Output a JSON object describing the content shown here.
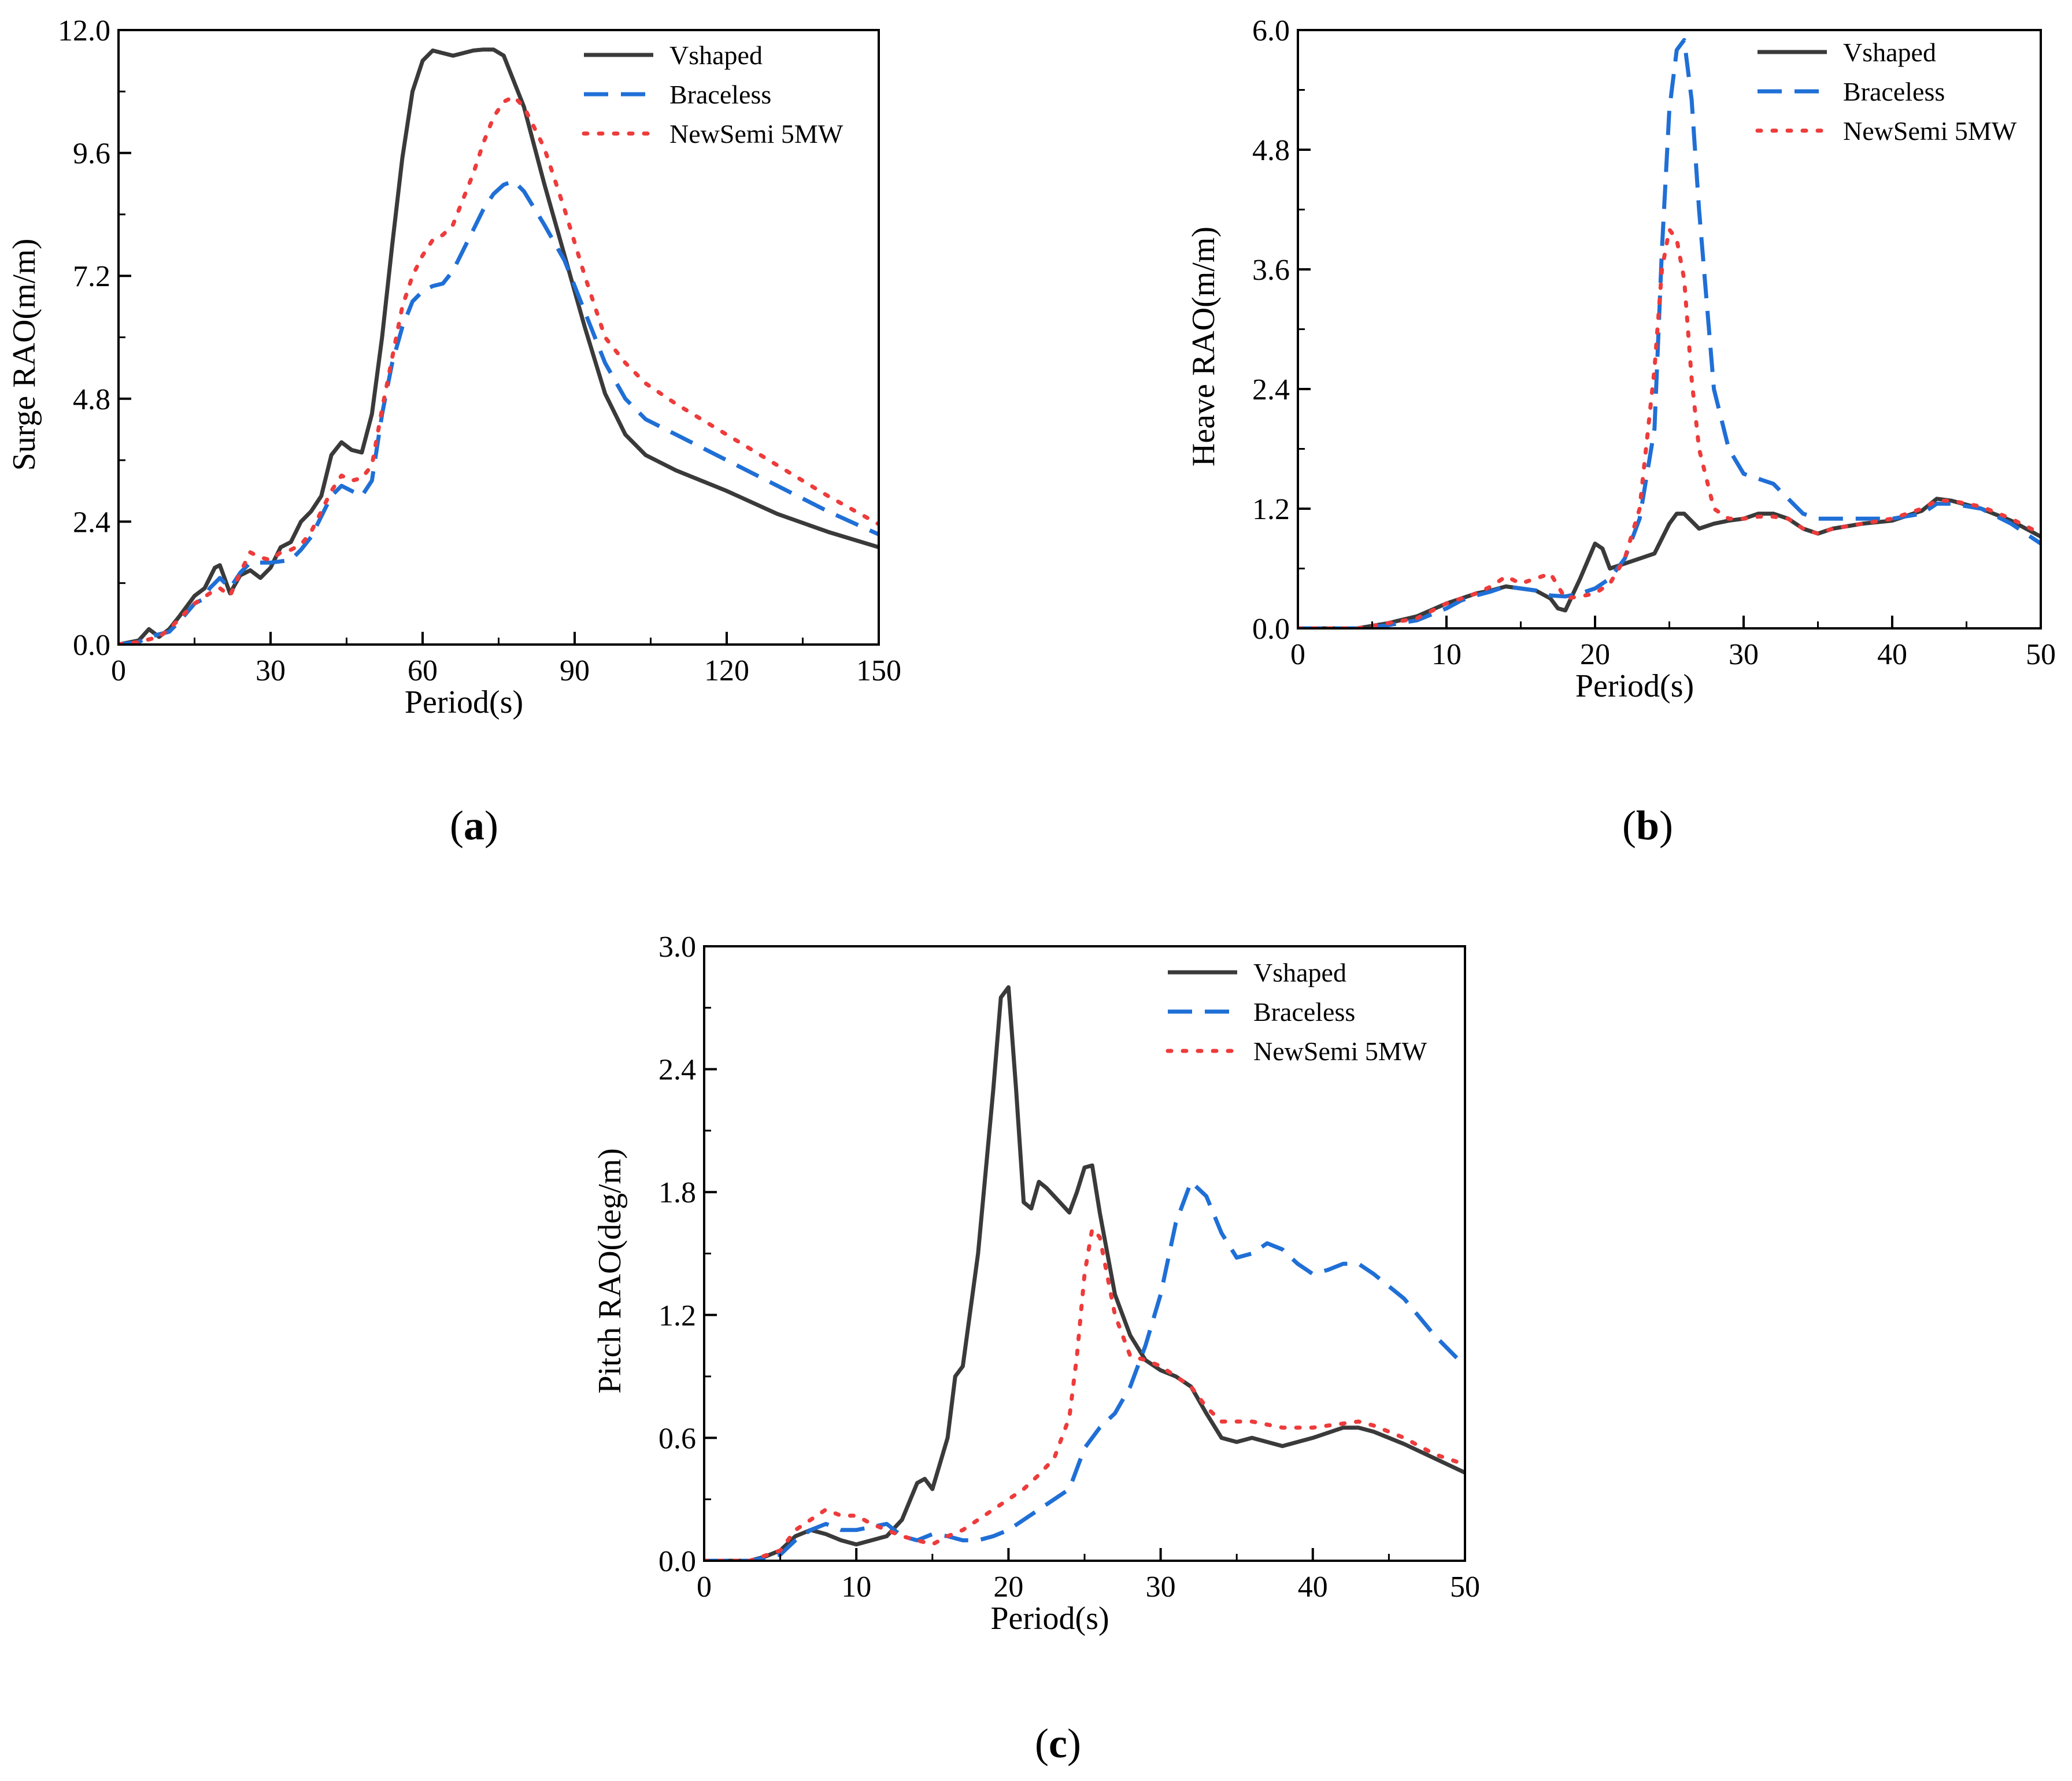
{
  "figure": {
    "panel_labels": [
      {
        "open": "(",
        "letter": "a",
        "close": ")"
      },
      {
        "open": "(",
        "letter": "b",
        "close": ")"
      },
      {
        "open": "(",
        "letter": "c",
        "close": ")"
      }
    ]
  },
  "colors": {
    "vshaped": "#3a3a3a",
    "braceless": "#1f6fd6",
    "newsemi": "#ee3b3b",
    "axis": "#000000"
  },
  "chart_data": [
    {
      "type": "line",
      "panel": "a",
      "title": "",
      "xlabel": "Period(s)",
      "ylabel": "Surge RAO(m/m)",
      "xlim": [
        0,
        150
      ],
      "ylim": [
        0,
        12
      ],
      "xticks": [
        0,
        30,
        60,
        90,
        120,
        150
      ],
      "yticks": [
        0.0,
        2.4,
        4.8,
        7.2,
        9.6,
        12.0
      ],
      "ytick_labels": [
        "0.0",
        "2.4",
        "4.8",
        "7.2",
        "9.6",
        "12.0"
      ],
      "legend": [
        "Vshaped",
        "Braceless",
        "NewSemi 5MW"
      ],
      "series": [
        {
          "name": "Vshaped",
          "style": "solid",
          "x": [
            0,
            4,
            6,
            8,
            10,
            12,
            15,
            17,
            18,
            19,
            20,
            22,
            24,
            26,
            28,
            30,
            32,
            34,
            36,
            38,
            40,
            42,
            44,
            46,
            48,
            50,
            52,
            54,
            56,
            58,
            60,
            62,
            64,
            66,
            68,
            70,
            72,
            74,
            76,
            78,
            80,
            84,
            88,
            92,
            96,
            100,
            104,
            110,
            120,
            130,
            140,
            150
          ],
          "y": [
            0,
            0.08,
            0.3,
            0.15,
            0.3,
            0.55,
            0.95,
            1.1,
            1.3,
            1.5,
            1.55,
            1.0,
            1.35,
            1.45,
            1.3,
            1.5,
            1.9,
            2.0,
            2.4,
            2.6,
            2.9,
            3.7,
            3.95,
            3.8,
            3.75,
            4.5,
            6.0,
            7.8,
            9.5,
            10.8,
            11.4,
            11.6,
            11.55,
            11.5,
            11.55,
            11.6,
            11.62,
            11.62,
            11.5,
            11.0,
            10.5,
            9.0,
            7.6,
            6.2,
            4.9,
            4.1,
            3.7,
            3.4,
            3.0,
            2.55,
            2.2,
            1.9
          ]
        },
        {
          "name": "Braceless",
          "style": "dashed",
          "x": [
            0,
            4,
            6,
            8,
            10,
            12,
            15,
            17,
            18,
            20,
            22,
            24,
            26,
            28,
            30,
            34,
            36,
            38,
            40,
            42,
            44,
            46,
            48,
            50,
            52,
            54,
            56,
            58,
            60,
            62,
            64,
            66,
            68,
            70,
            72,
            74,
            76,
            78,
            80,
            84,
            88,
            92,
            96,
            100,
            104,
            110,
            120,
            130,
            140,
            150
          ],
          "y": [
            0,
            0.05,
            0.15,
            0.2,
            0.25,
            0.45,
            0.8,
            0.9,
            1.1,
            1.3,
            1.1,
            1.4,
            1.6,
            1.6,
            1.6,
            1.65,
            1.85,
            2.1,
            2.5,
            2.9,
            3.1,
            3.0,
            2.9,
            3.2,
            4.5,
            5.5,
            6.2,
            6.7,
            6.9,
            7.0,
            7.05,
            7.3,
            7.7,
            8.1,
            8.5,
            8.8,
            8.98,
            9.05,
            8.85,
            8.2,
            7.5,
            6.5,
            5.5,
            4.8,
            4.4,
            4.1,
            3.6,
            3.1,
            2.6,
            2.15
          ]
        },
        {
          "name": "NewSemi 5MW",
          "style": "dotted",
          "x": [
            0,
            4,
            6,
            8,
            10,
            12,
            15,
            18,
            20,
            22,
            24,
            26,
            28,
            30,
            32,
            34,
            36,
            38,
            40,
            42,
            44,
            46,
            48,
            50,
            52,
            54,
            56,
            58,
            60,
            62,
            64,
            66,
            68,
            70,
            72,
            74,
            76,
            78,
            80,
            84,
            88,
            92,
            96,
            100,
            104,
            110,
            120,
            130,
            140,
            150
          ],
          "y": [
            0,
            0.05,
            0.1,
            0.15,
            0.3,
            0.5,
            0.8,
            1.0,
            1.1,
            0.95,
            1.4,
            1.8,
            1.7,
            1.65,
            1.8,
            1.85,
            1.95,
            2.2,
            2.6,
            3.0,
            3.3,
            3.2,
            3.25,
            3.5,
            4.6,
            5.6,
            6.6,
            7.2,
            7.6,
            7.9,
            8.0,
            8.2,
            8.7,
            9.2,
            9.8,
            10.3,
            10.6,
            10.7,
            10.5,
            9.7,
            8.5,
            7.2,
            6.0,
            5.5,
            5.1,
            4.7,
            4.1,
            3.5,
            2.9,
            2.35
          ]
        }
      ]
    },
    {
      "type": "line",
      "panel": "b",
      "title": "",
      "xlabel": "Period(s)",
      "ylabel": "Heave RAO(m/m)",
      "xlim": [
        0,
        50
      ],
      "ylim": [
        0,
        6
      ],
      "xticks": [
        0,
        10,
        20,
        30,
        40,
        50
      ],
      "yticks": [
        0.0,
        1.2,
        2.4,
        3.6,
        4.8,
        6.0
      ],
      "ytick_labels": [
        "0.0",
        "1.2",
        "2.4",
        "3.6",
        "4.8",
        "6.0"
      ],
      "legend": [
        "Vshaped",
        "Braceless",
        "NewSemi 5MW"
      ],
      "series": [
        {
          "name": "Vshaped",
          "style": "solid",
          "x": [
            0,
            4,
            6,
            8,
            10,
            11,
            12,
            13,
            14,
            15,
            16,
            17,
            17.5,
            18,
            19,
            20,
            20.5,
            21,
            22,
            23,
            24,
            25,
            25.5,
            26,
            27,
            28,
            29,
            30,
            31,
            32,
            33,
            34,
            35,
            36,
            38,
            40,
            42,
            43,
            44,
            46,
            48,
            50
          ],
          "y": [
            0,
            0,
            0.05,
            0.12,
            0.25,
            0.3,
            0.35,
            0.38,
            0.42,
            0.4,
            0.38,
            0.3,
            0.2,
            0.18,
            0.5,
            0.85,
            0.8,
            0.6,
            0.65,
            0.7,
            0.75,
            1.05,
            1.15,
            1.15,
            1.0,
            1.05,
            1.08,
            1.1,
            1.15,
            1.15,
            1.1,
            1.0,
            0.95,
            1.0,
            1.05,
            1.08,
            1.18,
            1.3,
            1.28,
            1.2,
            1.08,
            0.92
          ]
        },
        {
          "name": "Braceless",
          "style": "dashed",
          "x": [
            0,
            4,
            6,
            8,
            10,
            11,
            12,
            13,
            14,
            15,
            16,
            17,
            18,
            19,
            20,
            21,
            22,
            23,
            24,
            24.5,
            25,
            25.5,
            26,
            26.5,
            27,
            28,
            29,
            30,
            31,
            32,
            33,
            34,
            35,
            36,
            38,
            40,
            42,
            43,
            44,
            46,
            48,
            50
          ],
          "y": [
            0,
            0,
            0.03,
            0.08,
            0.2,
            0.28,
            0.33,
            0.37,
            0.42,
            0.4,
            0.38,
            0.33,
            0.32,
            0.35,
            0.4,
            0.5,
            0.7,
            1.1,
            2.0,
            3.8,
            5.2,
            5.8,
            5.9,
            5.3,
            4.2,
            2.4,
            1.8,
            1.55,
            1.5,
            1.45,
            1.3,
            1.15,
            1.1,
            1.1,
            1.1,
            1.1,
            1.15,
            1.25,
            1.25,
            1.2,
            1.05,
            0.85
          ]
        },
        {
          "name": "NewSemi 5MW",
          "style": "dotted",
          "x": [
            0,
            4,
            6,
            8,
            10,
            11,
            12,
            13,
            14,
            15,
            16,
            17,
            18,
            19,
            20,
            21,
            22,
            23,
            24,
            24.5,
            25,
            25.5,
            26,
            26.5,
            27,
            28,
            29,
            30,
            31,
            32,
            33,
            34,
            35,
            36,
            38,
            40,
            42,
            43,
            44,
            46,
            48,
            50
          ],
          "y": [
            0,
            0,
            0.05,
            0.1,
            0.25,
            0.3,
            0.35,
            0.42,
            0.52,
            0.45,
            0.5,
            0.55,
            0.3,
            0.32,
            0.35,
            0.45,
            0.7,
            1.2,
            2.6,
            3.6,
            4.0,
            3.9,
            3.5,
            2.5,
            1.8,
            1.2,
            1.1,
            1.1,
            1.12,
            1.12,
            1.1,
            1.0,
            0.95,
            1.0,
            1.05,
            1.1,
            1.2,
            1.28,
            1.28,
            1.22,
            1.1,
            0.95
          ]
        }
      ]
    },
    {
      "type": "line",
      "panel": "c",
      "title": "",
      "xlabel": "Period(s)",
      "ylabel": "Pitch RAO(deg/m)",
      "xlim": [
        0,
        50
      ],
      "ylim": [
        0,
        3
      ],
      "xticks": [
        0,
        10,
        20,
        30,
        40,
        50
      ],
      "yticks": [
        0.0,
        0.6,
        1.2,
        1.8,
        2.4,
        3.0
      ],
      "ytick_labels": [
        "0.0",
        "0.6",
        "1.2",
        "1.8",
        "2.4",
        "3.0"
      ],
      "legend": [
        "Vshaped",
        "Braceless",
        "NewSemi 5MW"
      ],
      "series": [
        {
          "name": "Vshaped",
          "style": "solid",
          "x": [
            0,
            2,
            3,
            4,
            5,
            6,
            7,
            8,
            9,
            10,
            11,
            12,
            13,
            14,
            14.5,
            15,
            16,
            16.5,
            17,
            18,
            19,
            19.5,
            20,
            20.5,
            21,
            21.5,
            22,
            22.5,
            23,
            24,
            24.5,
            25,
            25.5,
            26,
            27,
            28,
            29,
            30,
            31,
            32,
            33,
            34,
            35,
            36,
            38,
            40,
            42,
            43,
            44,
            46,
            48,
            50
          ],
          "y": [
            0,
            0,
            0,
            0.02,
            0.05,
            0.12,
            0.15,
            0.13,
            0.1,
            0.08,
            0.1,
            0.12,
            0.2,
            0.38,
            0.4,
            0.35,
            0.6,
            0.9,
            0.95,
            1.5,
            2.3,
            2.75,
            2.8,
            2.3,
            1.75,
            1.72,
            1.85,
            1.82,
            1.78,
            1.7,
            1.8,
            1.92,
            1.93,
            1.7,
            1.3,
            1.1,
            0.98,
            0.93,
            0.9,
            0.85,
            0.72,
            0.6,
            0.58,
            0.6,
            0.56,
            0.6,
            0.65,
            0.65,
            0.63,
            0.57,
            0.5,
            0.43
          ]
        },
        {
          "name": "Braceless",
          "style": "dashed",
          "x": [
            0,
            3,
            5,
            6,
            7,
            8,
            9,
            10,
            12,
            13,
            14,
            15,
            16,
            17,
            18,
            19,
            20,
            21,
            22,
            23,
            24,
            25,
            26,
            27,
            28,
            29,
            30,
            31,
            32,
            33,
            34,
            35,
            36,
            37,
            38,
            39,
            40,
            41,
            42,
            43,
            44,
            46,
            48,
            50
          ],
          "y": [
            0,
            0,
            0.03,
            0.1,
            0.15,
            0.18,
            0.15,
            0.15,
            0.18,
            0.12,
            0.1,
            0.13,
            0.12,
            0.1,
            0.1,
            0.12,
            0.15,
            0.2,
            0.25,
            0.3,
            0.35,
            0.55,
            0.65,
            0.72,
            0.85,
            1.05,
            1.3,
            1.65,
            1.85,
            1.78,
            1.6,
            1.48,
            1.5,
            1.55,
            1.52,
            1.45,
            1.4,
            1.42,
            1.45,
            1.45,
            1.4,
            1.28,
            1.1,
            0.95
          ]
        },
        {
          "name": "NewSemi 5MW",
          "style": "dotted",
          "x": [
            0,
            3,
            5,
            6,
            7,
            8,
            9,
            10,
            11,
            12,
            13,
            14,
            15,
            16,
            17,
            18,
            19,
            20,
            21,
            22,
            23,
            24,
            24.5,
            25,
            25.5,
            26,
            27,
            28,
            29,
            30,
            31,
            32,
            33,
            34,
            35,
            36,
            38,
            40,
            42,
            43,
            44,
            46,
            48,
            50
          ],
          "y": [
            0,
            0,
            0.05,
            0.15,
            0.2,
            0.25,
            0.22,
            0.22,
            0.18,
            0.15,
            0.12,
            0.1,
            0.08,
            0.12,
            0.15,
            0.2,
            0.25,
            0.3,
            0.35,
            0.42,
            0.5,
            0.7,
            1.0,
            1.4,
            1.62,
            1.58,
            1.2,
            1.0,
            0.98,
            0.95,
            0.9,
            0.85,
            0.75,
            0.68,
            0.68,
            0.68,
            0.65,
            0.65,
            0.67,
            0.68,
            0.66,
            0.6,
            0.52,
            0.47
          ]
        }
      ]
    }
  ]
}
